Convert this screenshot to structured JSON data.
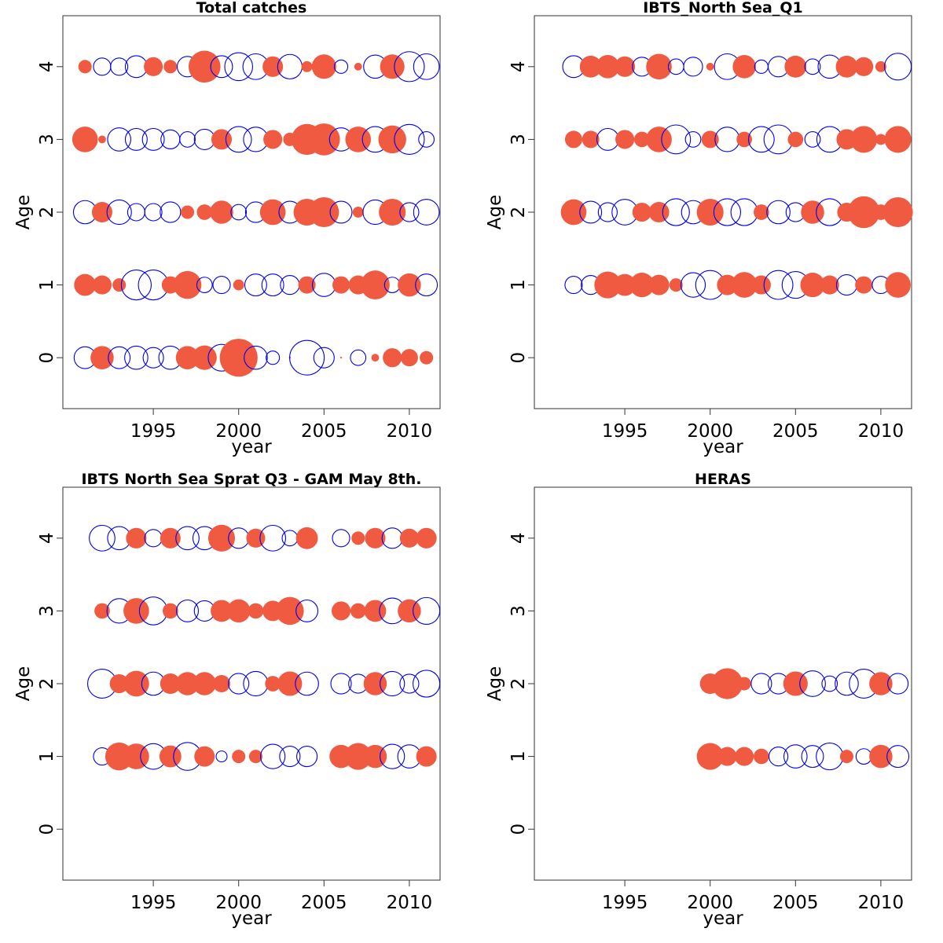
{
  "colors": {
    "positive": "#ef5a41",
    "negative": "#0000ee"
  },
  "chart_data": [
    {
      "type": "scatter",
      "title": "Total catches",
      "xlabel": "year",
      "ylabel": "Age",
      "xlim": [
        1989.7,
        2011.8
      ],
      "ylim": [
        -0.7,
        4.7
      ],
      "xticks": [
        1995,
        2000,
        2005,
        2010
      ],
      "yticks": [
        0,
        1,
        2,
        3,
        4
      ],
      "years": [
        1991,
        1992,
        1993,
        1994,
        1995,
        1996,
        1997,
        1998,
        1999,
        2000,
        2001,
        2002,
        2003,
        2004,
        2005,
        2006,
        2007,
        2008,
        2009,
        2010,
        2011
      ],
      "ages": [
        0,
        1,
        2,
        3,
        4
      ],
      "residuals": [
        [
          -0.4,
          0.45,
          -0.4,
          -0.45,
          -0.35,
          -0.45,
          0.45,
          0.5,
          -0.6,
          1.2,
          -0.45,
          -0.15,
          0,
          -1.0,
          -0.35,
          0,
          -0.2,
          0.05,
          0.3,
          0.25,
          0.15
        ],
        [
          0.4,
          0.3,
          0.15,
          -0.75,
          -0.75,
          0.25,
          0.65,
          -0.2,
          -0.25,
          0.1,
          -0.4,
          -0.4,
          -0.3,
          0.25,
          -0.45,
          0.25,
          0.3,
          0.7,
          -0.2,
          0.45,
          -0.4
        ],
        [
          -0.45,
          0.35,
          -0.5,
          -0.25,
          -0.25,
          -0.35,
          0.15,
          0.2,
          0.45,
          -0.2,
          -0.35,
          0.55,
          -0.4,
          0.6,
          0.75,
          -0.4,
          0.1,
          -0.5,
          0.6,
          -0.3,
          -0.55
        ],
        [
          0.55,
          0.05,
          -0.45,
          -0.4,
          -0.4,
          -0.3,
          -0.2,
          -0.35,
          0.35,
          -0.55,
          -0.5,
          0.3,
          0.15,
          0.8,
          0.85,
          -0.45,
          0.55,
          -0.55,
          0.65,
          -0.75,
          -0.2
        ],
        [
          0.15,
          -0.25,
          -0.25,
          -0.4,
          0.3,
          0.15,
          -0.35,
          0.85,
          -0.4,
          -0.65,
          -0.55,
          0.35,
          -0.5,
          0.1,
          0.5,
          -0.15,
          0.05,
          -0.45,
          0.5,
          -0.75,
          -0.55
        ]
      ]
    },
    {
      "type": "scatter",
      "title": "IBTS_North Sea_Q1",
      "xlabel": "year",
      "ylabel": "Age",
      "xlim": [
        1989.7,
        2011.8
      ],
      "ylim": [
        -0.7,
        4.7
      ],
      "xticks": [
        1995,
        2000,
        2005,
        2010
      ],
      "yticks": [
        0,
        1,
        2,
        3,
        4
      ],
      "years": [
        1992,
        1993,
        1994,
        1995,
        1996,
        1997,
        1998,
        1999,
        2000,
        2001,
        2002,
        2003,
        2004,
        2005,
        2006,
        2007,
        2008,
        2009,
        2010,
        2011
      ],
      "ages": [
        1,
        2,
        3,
        4
      ],
      "residuals": [
        [
          -0.25,
          -0.3,
          0.6,
          0.4,
          0.5,
          0.35,
          0.15,
          -0.5,
          -0.7,
          0.35,
          0.55,
          0.3,
          -0.7,
          -0.6,
          0.5,
          0.3,
          -0.35,
          0.25,
          -0.25,
          0.55
        ],
        [
          0.55,
          -0.4,
          -0.3,
          -0.55,
          0.3,
          0.35,
          -0.6,
          -0.45,
          0.6,
          -0.6,
          -0.6,
          0.2,
          -0.45,
          -0.3,
          0.45,
          -0.6,
          0.3,
          0.85,
          0.2,
          0.75
        ],
        [
          0.25,
          0.25,
          -0.4,
          0.3,
          0.2,
          0.55,
          -0.7,
          -0.2,
          0.25,
          -0.5,
          0.2,
          -0.55,
          -0.7,
          0.2,
          -0.2,
          -0.55,
          0.35,
          0.6,
          0.1,
          0.6
        ],
        [
          -0.4,
          0.4,
          0.45,
          0.35,
          -0.3,
          0.55,
          -0.2,
          -0.3,
          0.05,
          -0.55,
          0.45,
          -0.15,
          -0.35,
          0.4,
          -0.2,
          -0.45,
          0.4,
          0.3,
          0.1,
          -0.6
        ]
      ]
    },
    {
      "type": "scatter",
      "title": "IBTS North Sea Sprat Q3 - GAM May 8th.",
      "xlabel": "year",
      "ylabel": "Age",
      "xlim": [
        1989.7,
        2011.8
      ],
      "ylim": [
        -0.7,
        4.7
      ],
      "xticks": [
        1995,
        2000,
        2005,
        2010
      ],
      "yticks": [
        0,
        1,
        2,
        3,
        4
      ],
      "years": [
        1992,
        1993,
        1994,
        1995,
        1996,
        1997,
        1998,
        1999,
        2000,
        2001,
        2002,
        2003,
        2004,
        2005,
        2006,
        2007,
        2008,
        2009,
        2010,
        2011
      ],
      "ages": [
        1,
        2,
        3,
        4
      ],
      "residuals": [
        [
          -0.25,
          0.65,
          0.55,
          -0.55,
          0.4,
          -0.65,
          0.35,
          -0.1,
          0.15,
          0.15,
          -0.5,
          -0.35,
          -0.35,
          null,
          0.45,
          0.6,
          0.45,
          -0.5,
          -0.45,
          0.35
        ],
        [
          -0.7,
          0.3,
          0.55,
          -0.45,
          0.35,
          0.45,
          0.45,
          0.25,
          -0.35,
          -0.5,
          0.2,
          0.5,
          -0.45,
          null,
          -0.35,
          -0.3,
          0.45,
          -0.5,
          -0.3,
          -0.6
        ],
        [
          0.2,
          -0.5,
          0.55,
          -0.65,
          0.2,
          -0.4,
          -0.35,
          0.4,
          0.45,
          0.2,
          0.35,
          0.65,
          -0.4,
          null,
          0.3,
          0.2,
          0.4,
          -0.55,
          0.45,
          -0.6
        ],
        [
          -0.55,
          -0.45,
          0.35,
          -0.25,
          0.35,
          -0.45,
          -0.45,
          0.6,
          -0.35,
          0.3,
          -0.55,
          -0.2,
          0.4,
          null,
          -0.25,
          0.15,
          0.35,
          -0.35,
          0.3,
          0.35
        ]
      ]
    },
    {
      "type": "scatter",
      "title": "HERAS",
      "xlabel": "year",
      "ylabel": "Age",
      "xlim": [
        1989.7,
        2011.8
      ],
      "ylim": [
        -0.7,
        4.7
      ],
      "xticks": [
        1995,
        2000,
        2005,
        2010
      ],
      "yticks": [
        0,
        1,
        2,
        3,
        4
      ],
      "years": [
        2000,
        2001,
        2002,
        2003,
        2004,
        2005,
        2006,
        2007,
        2008,
        2009,
        2010,
        2011
      ],
      "ages": [
        1,
        2
      ],
      "residuals": [
        [
          0.6,
          0.3,
          0.3,
          0.2,
          -0.3,
          -0.45,
          -0.4,
          -0.6,
          0.15,
          -0.2,
          0.45,
          -0.4
        ],
        [
          0.35,
          0.8,
          0.15,
          -0.35,
          -0.35,
          0.5,
          -0.55,
          -0.2,
          -0.45,
          -0.7,
          0.45,
          -0.35
        ]
      ]
    }
  ]
}
